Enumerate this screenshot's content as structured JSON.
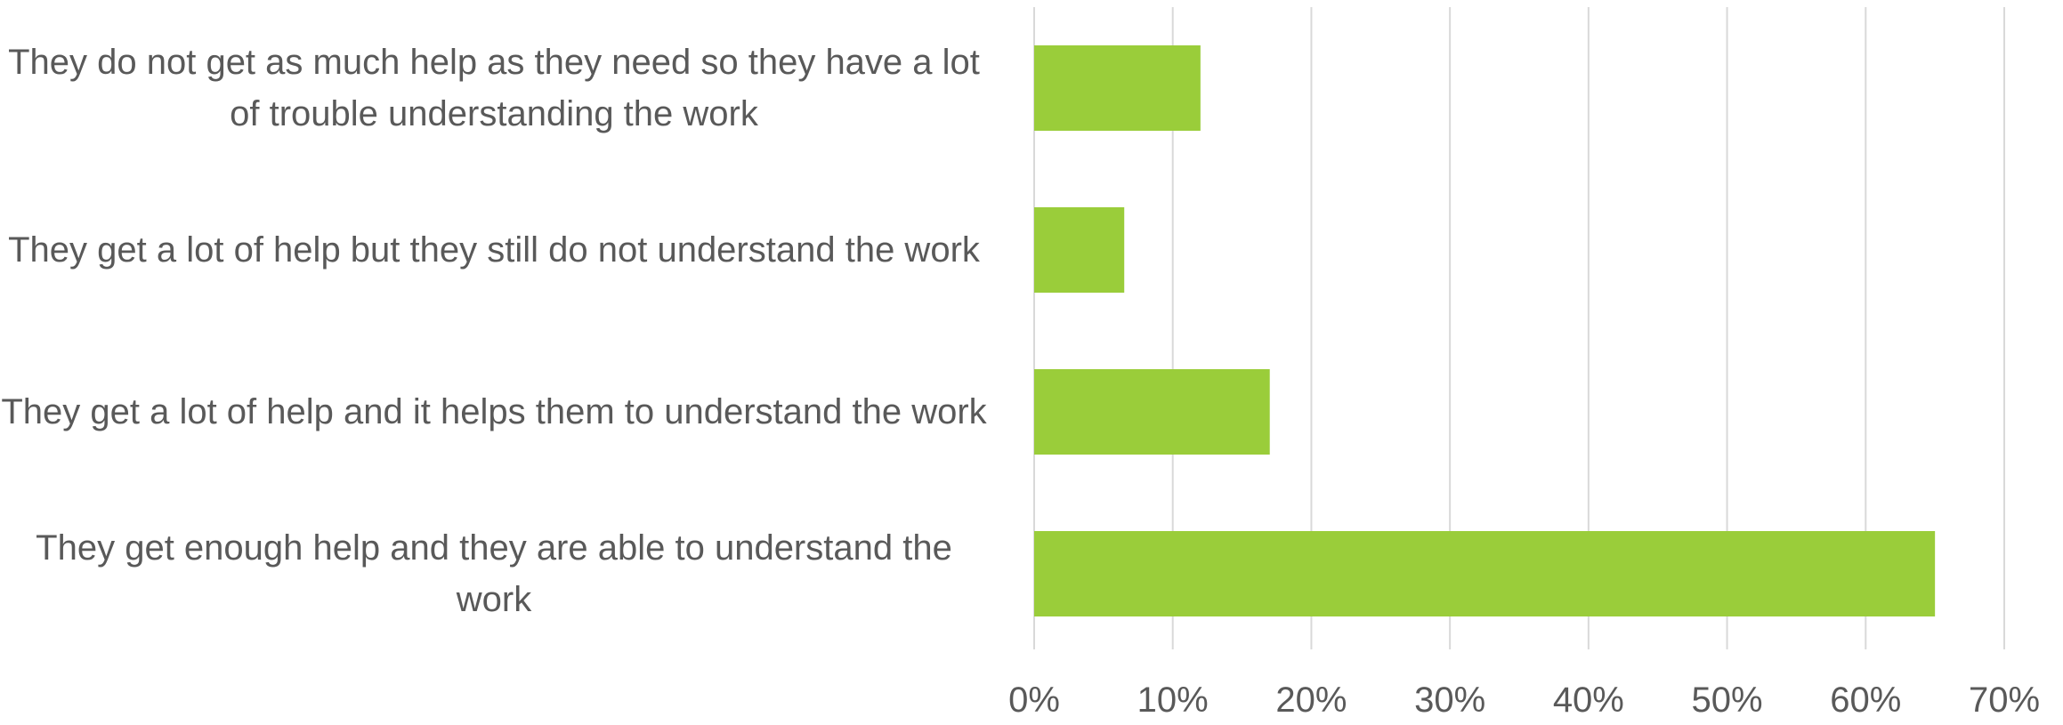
{
  "chart_data": {
    "type": "bar",
    "orientation": "horizontal",
    "categories": [
      "They do not get as much help as they need so they have a lot of trouble understanding the work",
      "They get a lot of help but they still do not understand the work",
      "They get a lot of help and it helps them to understand the work",
      "They get enough help and they are able to understand the work"
    ],
    "values": [
      12,
      6.5,
      17,
      65
    ],
    "value_unit": "%",
    "xlim": [
      0,
      70
    ],
    "x_ticks": [
      "0%",
      "10%",
      "20%",
      "30%",
      "40%",
      "50%",
      "60%",
      "70%"
    ],
    "title": "",
    "xlabel": "",
    "ylabel": "",
    "grid": "vertical",
    "legend": "none",
    "bar_color": "#9ACD3A",
    "grid_color": "#D9D9D9",
    "label_color": "#595959"
  }
}
